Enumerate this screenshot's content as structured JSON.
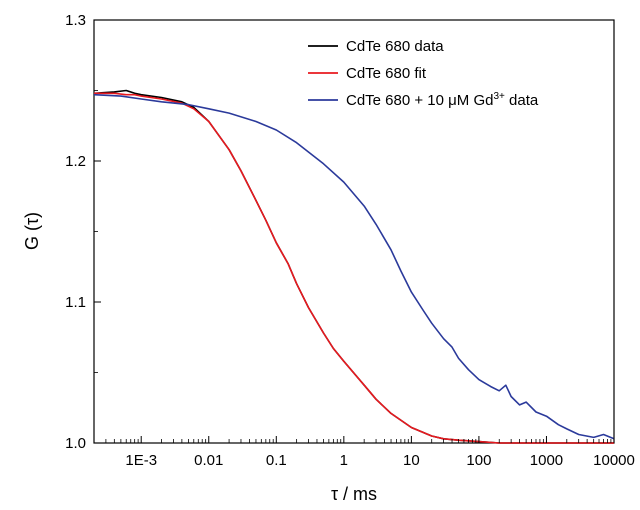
{
  "chart_data": {
    "type": "line",
    "title": "",
    "xlabel": "τ / ms",
    "ylabel": "G (τ)",
    "xscale": "log",
    "xlim": [
      0.0002,
      10000
    ],
    "ylim": [
      1.0,
      1.3
    ],
    "grid": false,
    "legend_position": "top-right",
    "x_ticks": [
      0.001,
      0.01,
      0.1,
      1,
      10,
      100,
      1000,
      10000
    ],
    "x_tick_labels": [
      "1E-3",
      "0.01",
      "0.1",
      "1",
      "10",
      "100",
      "1000",
      "10000"
    ],
    "y_ticks": [
      1.0,
      1.1,
      1.2,
      1.3
    ],
    "y_tick_labels": [
      "1.0",
      "1.1",
      "1.2",
      "1.3"
    ],
    "legend": [
      {
        "label": "CdTe 680 data",
        "color": "#000000"
      },
      {
        "label": "CdTe 680 fit",
        "color": "#e8191f"
      },
      {
        "label_prefix": "CdTe 680 + 10 μM Gd",
        "label_sup": "3+",
        "label_suffix": " data",
        "color": "#2b3a9b"
      }
    ],
    "series": [
      {
        "name": "CdTe 680 data",
        "color": "#000000",
        "x": [
          0.0002,
          0.0004,
          0.0006,
          0.0008,
          0.001,
          0.002,
          0.004,
          0.006,
          0.01,
          0.02,
          0.03,
          0.05,
          0.07,
          0.1,
          0.15,
          0.2,
          0.3,
          0.5,
          0.7,
          1,
          2,
          3,
          5,
          10,
          20,
          30,
          50,
          100,
          200,
          500,
          1000,
          10000
        ],
        "values": [
          1.248,
          1.249,
          1.25,
          1.248,
          1.247,
          1.245,
          1.242,
          1.238,
          1.228,
          1.208,
          1.193,
          1.172,
          1.158,
          1.142,
          1.127,
          1.113,
          1.096,
          1.078,
          1.067,
          1.058,
          1.041,
          1.031,
          1.021,
          1.011,
          1.005,
          1.003,
          1.002,
          1.001,
          1.0,
          1.0,
          1.0,
          1.0
        ]
      },
      {
        "name": "CdTe 680 fit",
        "color": "#e8191f",
        "x": [
          0.0002,
          0.0004,
          0.0006,
          0.0008,
          0.001,
          0.002,
          0.004,
          0.006,
          0.01,
          0.02,
          0.03,
          0.05,
          0.07,
          0.1,
          0.15,
          0.2,
          0.3,
          0.5,
          0.7,
          1,
          2,
          3,
          5,
          10,
          20,
          30,
          50,
          100,
          200,
          500,
          1000,
          10000
        ],
        "values": [
          1.248,
          1.248,
          1.247,
          1.247,
          1.246,
          1.244,
          1.241,
          1.237,
          1.228,
          1.208,
          1.193,
          1.172,
          1.158,
          1.142,
          1.127,
          1.113,
          1.096,
          1.078,
          1.067,
          1.058,
          1.041,
          1.031,
          1.021,
          1.011,
          1.005,
          1.003,
          1.002,
          1.001,
          1.0,
          1.0,
          1.0,
          1.0
        ]
      },
      {
        "name": "CdTe 680 + 10 μM Gd3+ data",
        "color": "#2b3a9b",
        "x": [
          0.0002,
          0.0005,
          0.001,
          0.002,
          0.005,
          0.01,
          0.02,
          0.05,
          0.1,
          0.2,
          0.5,
          1,
          2,
          3,
          5,
          7,
          10,
          15,
          20,
          30,
          40,
          50,
          70,
          100,
          150,
          200,
          250,
          300,
          400,
          500,
          700,
          1000,
          1500,
          2000,
          3000,
          5000,
          7000,
          10000
        ],
        "values": [
          1.247,
          1.246,
          1.244,
          1.242,
          1.24,
          1.237,
          1.234,
          1.228,
          1.222,
          1.213,
          1.198,
          1.185,
          1.168,
          1.155,
          1.137,
          1.122,
          1.107,
          1.094,
          1.085,
          1.074,
          1.068,
          1.06,
          1.052,
          1.045,
          1.04,
          1.037,
          1.041,
          1.033,
          1.027,
          1.029,
          1.022,
          1.019,
          1.013,
          1.01,
          1.006,
          1.004,
          1.006,
          1.003
        ]
      }
    ]
  }
}
